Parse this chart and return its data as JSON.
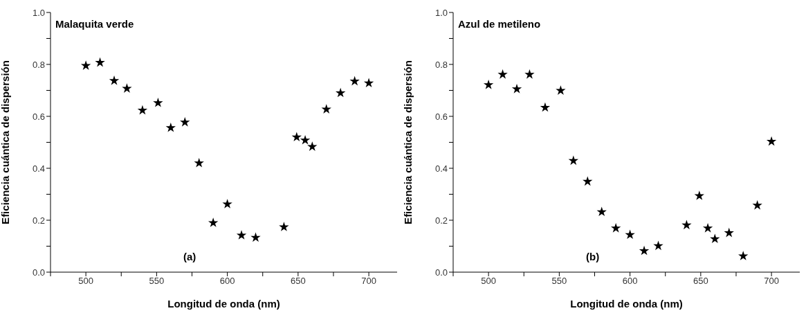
{
  "chart_data": [
    {
      "type": "scatter",
      "title": "Malaquita verde",
      "xlabel": "Longitud de onda (nm)",
      "ylabel": "Eficiencia cuántica de dispersión",
      "annotations": [
        "(a)"
      ],
      "x": [
        500,
        510,
        520,
        529,
        540,
        551,
        560,
        570,
        580,
        590,
        600,
        610,
        620,
        640,
        649,
        655,
        660,
        670,
        680,
        690,
        700
      ],
      "series": [
        {
          "color": "#000000",
          "values": [
            0.795,
            0.807,
            0.737,
            0.707,
            0.623,
            0.652,
            0.556,
            0.577,
            0.42,
            0.19,
            0.262,
            0.142,
            0.133,
            0.174,
            0.52,
            0.508,
            0.483,
            0.627,
            0.69,
            0.735,
            0.728
          ]
        }
      ],
      "xlim": [
        475,
        720
      ],
      "xticks": [
        {
          "value": 475,
          "label": null
        },
        500,
        {
          "value": 525,
          "label": null
        },
        550,
        {
          "value": 575,
          "label": null
        },
        600,
        {
          "value": 625,
          "label": null
        },
        650,
        {
          "value": 675,
          "label": null
        },
        700
      ],
      "ylim": [
        0,
        1
      ],
      "yticks": [
        {
          "value": 0,
          "label": "0.0"
        },
        {
          "value": 0.1,
          "label": null
        },
        0.2,
        {
          "value": 0.3,
          "label": null
        },
        0.4,
        {
          "value": 0.5,
          "label": null
        },
        0.6,
        {
          "value": 0.7,
          "label": null
        },
        0.8,
        {
          "value": 0.9,
          "label": null
        },
        {
          "value": 1,
          "label": "1.0"
        }
      ],
      "marker": "star",
      "grid": false,
      "legend": false
    },
    {
      "type": "scatter",
      "title": "Azul de metileno",
      "xlabel": "Longitud de onda (nm)",
      "ylabel": "Eficiencia cuántica de dispersión",
      "annotations": [
        "(b)"
      ],
      "x": [
        500,
        510,
        520,
        529,
        540,
        551,
        560,
        570,
        580,
        590,
        600,
        610,
        620,
        640,
        649,
        655,
        660,
        670,
        680,
        690,
        700
      ],
      "series": [
        {
          "color": "#000000",
          "values": [
            0.721,
            0.761,
            0.705,
            0.761,
            0.634,
            0.699,
            0.429,
            0.349,
            0.232,
            0.169,
            0.144,
            0.082,
            0.101,
            0.181,
            0.294,
            0.169,
            0.128,
            0.151,
            0.062,
            0.257,
            0.503
          ]
        }
      ],
      "xlim": [
        475,
        720
      ],
      "xticks": [
        {
          "value": 475,
          "label": null
        },
        500,
        {
          "value": 525,
          "label": null
        },
        550,
        {
          "value": 575,
          "label": null
        },
        600,
        {
          "value": 625,
          "label": null
        },
        650,
        {
          "value": 675,
          "label": null
        },
        700
      ],
      "ylim": [
        0,
        1
      ],
      "yticks": [
        {
          "value": 0,
          "label": "0.0"
        },
        {
          "value": 0.1,
          "label": null
        },
        0.2,
        {
          "value": 0.3,
          "label": null
        },
        0.4,
        {
          "value": 0.5,
          "label": null
        },
        0.6,
        {
          "value": 0.7,
          "label": null
        },
        0.8,
        {
          "value": 0.9,
          "label": null
        },
        {
          "value": 1,
          "label": "1.0"
        }
      ],
      "marker": "star",
      "grid": false,
      "legend": false
    }
  ]
}
